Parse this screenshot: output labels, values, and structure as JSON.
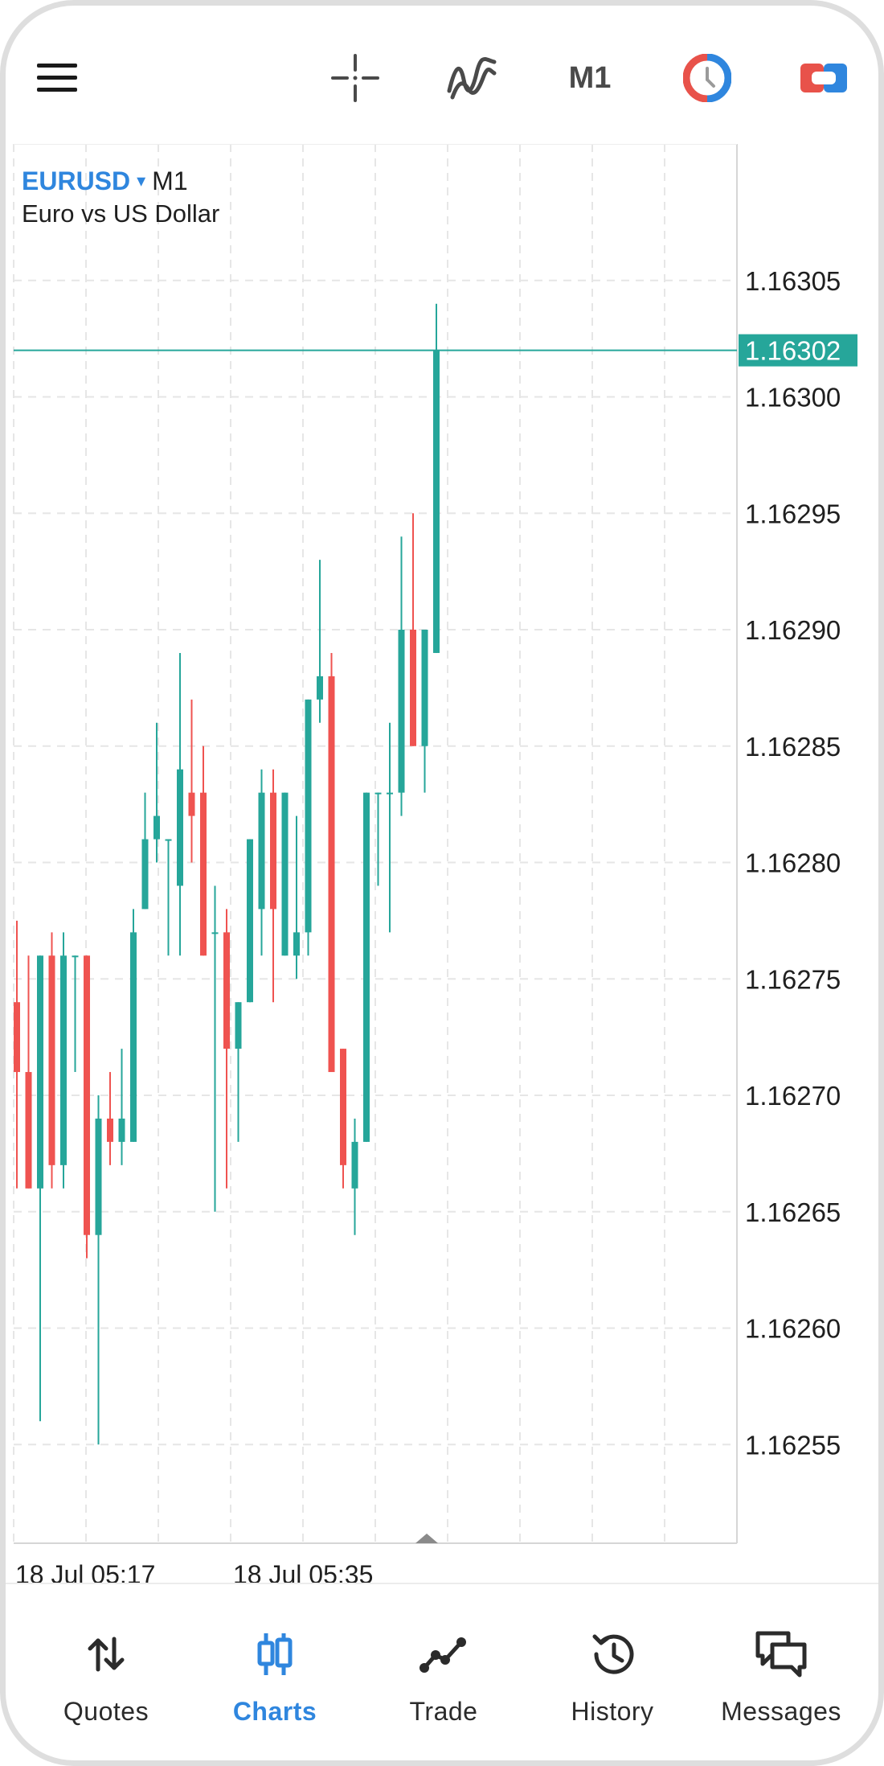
{
  "toolbar": {
    "timeframe": "M1",
    "buttons": [
      "menu-icon",
      "crosshair-icon",
      "indicators-icon",
      "timeframe",
      "one-click-trading-icon",
      "trade-panel-icon"
    ]
  },
  "symbol": {
    "name": "EURUSD",
    "caret": "▾",
    "timeframe": "M1",
    "description": "Euro vs US Dollar"
  },
  "colors": {
    "bull": "#26a69a",
    "bear": "#ef5350",
    "accent": "#2f86de",
    "grid": "#e6e6e6",
    "price_line": "#26a69a"
  },
  "chart_data": {
    "type": "candlestick",
    "price_axis": [
      "1.16305",
      "1.16300",
      "1.16295",
      "1.16290",
      "1.16285",
      "1.16280",
      "1.16275",
      "1.16270",
      "1.16265",
      "1.16260",
      "1.16255"
    ],
    "time_axis": [
      "18 Jul 05:17",
      "18 Jul 05:35"
    ],
    "current_price": "1.16302",
    "ylim": [
      1.1625,
      1.1631
    ],
    "candles": [
      {
        "o": 1.16274,
        "h": 1.162775,
        "l": 1.16266,
        "c": 1.16271
      },
      {
        "o": 1.16271,
        "h": 1.16276,
        "l": 1.16266,
        "c": 1.16266
      },
      {
        "o": 1.16266,
        "h": 1.16276,
        "l": 1.16256,
        "c": 1.16276
      },
      {
        "o": 1.16276,
        "h": 1.16277,
        "l": 1.16266,
        "c": 1.16267
      },
      {
        "o": 1.16267,
        "h": 1.16277,
        "l": 1.16266,
        "c": 1.16276
      },
      {
        "o": 1.16276,
        "h": 1.16276,
        "l": 1.16271,
        "c": 1.16276
      },
      {
        "o": 1.16276,
        "h": 1.16276,
        "l": 1.16263,
        "c": 1.16264
      },
      {
        "o": 1.16264,
        "h": 1.1627,
        "l": 1.16255,
        "c": 1.16269
      },
      {
        "o": 1.16269,
        "h": 1.16271,
        "l": 1.16267,
        "c": 1.16268
      },
      {
        "o": 1.16268,
        "h": 1.16272,
        "l": 1.16267,
        "c": 1.16269
      },
      {
        "o": 1.16268,
        "h": 1.16278,
        "l": 1.16268,
        "c": 1.16277
      },
      {
        "o": 1.16278,
        "h": 1.16283,
        "l": 1.16278,
        "c": 1.16281
      },
      {
        "o": 1.16281,
        "h": 1.16286,
        "l": 1.1628,
        "c": 1.16282
      },
      {
        "o": 1.16281,
        "h": 1.16281,
        "l": 1.16276,
        "c": 1.16281
      },
      {
        "o": 1.16279,
        "h": 1.16289,
        "l": 1.16276,
        "c": 1.16284
      },
      {
        "o": 1.16283,
        "h": 1.16287,
        "l": 1.1628,
        "c": 1.16282
      },
      {
        "o": 1.16283,
        "h": 1.16285,
        "l": 1.16276,
        "c": 1.16276
      },
      {
        "o": 1.16277,
        "h": 1.16279,
        "l": 1.16265,
        "c": 1.16277
      },
      {
        "o": 1.16277,
        "h": 1.16278,
        "l": 1.16266,
        "c": 1.16272
      },
      {
        "o": 1.16272,
        "h": 1.16274,
        "l": 1.16268,
        "c": 1.16274
      },
      {
        "o": 1.16274,
        "h": 1.16281,
        "l": 1.16274,
        "c": 1.16281
      },
      {
        "o": 1.16278,
        "h": 1.16284,
        "l": 1.16276,
        "c": 1.16283
      },
      {
        "o": 1.16283,
        "h": 1.16284,
        "l": 1.16274,
        "c": 1.16278
      },
      {
        "o": 1.16276,
        "h": 1.16283,
        "l": 1.16276,
        "c": 1.16283
      },
      {
        "o": 1.16276,
        "h": 1.16282,
        "l": 1.16275,
        "c": 1.16277
      },
      {
        "o": 1.16277,
        "h": 1.16287,
        "l": 1.16276,
        "c": 1.16287
      },
      {
        "o": 1.16287,
        "h": 1.16293,
        "l": 1.16286,
        "c": 1.16288
      },
      {
        "o": 1.16288,
        "h": 1.16289,
        "l": 1.16271,
        "c": 1.16271
      },
      {
        "o": 1.16272,
        "h": 1.16272,
        "l": 1.16266,
        "c": 1.16267
      },
      {
        "o": 1.16266,
        "h": 1.16269,
        "l": 1.16264,
        "c": 1.16268
      },
      {
        "o": 1.16268,
        "h": 1.16283,
        "l": 1.16268,
        "c": 1.16283
      },
      {
        "o": 1.16283,
        "h": 1.16283,
        "l": 1.16279,
        "c": 1.16283
      },
      {
        "o": 1.16283,
        "h": 1.16286,
        "l": 1.16277,
        "c": 1.16283
      },
      {
        "o": 1.16283,
        "h": 1.16294,
        "l": 1.16282,
        "c": 1.1629
      },
      {
        "o": 1.1629,
        "h": 1.16295,
        "l": 1.16285,
        "c": 1.16285
      },
      {
        "o": 1.16285,
        "h": 1.1629,
        "l": 1.16283,
        "c": 1.1629
      },
      {
        "o": 1.16289,
        "h": 1.16304,
        "l": 1.16289,
        "c": 1.16302
      }
    ]
  },
  "nav": [
    {
      "label": "Quotes",
      "icon": "quotes-icon",
      "active": false
    },
    {
      "label": "Charts",
      "icon": "charts-icon",
      "active": true
    },
    {
      "label": "Trade",
      "icon": "trade-icon",
      "active": false
    },
    {
      "label": "History",
      "icon": "history-icon",
      "active": false
    },
    {
      "label": "Messages",
      "icon": "messages-icon",
      "active": false
    }
  ]
}
